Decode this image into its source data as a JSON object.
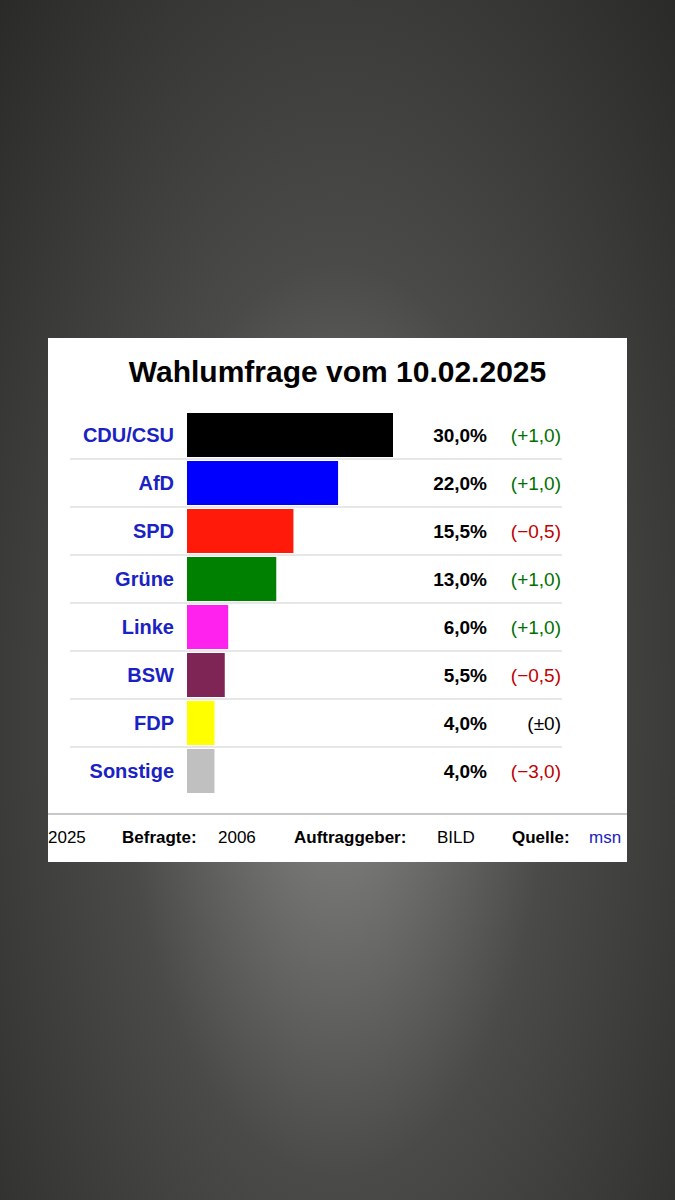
{
  "chart_data": {
    "type": "bar",
    "orientation": "horizontal",
    "title": "Wahlumfrage vom 10.02.2025",
    "categories": [
      "CDU/CSU",
      "AfD",
      "SPD",
      "Grüne",
      "Linke",
      "BSW",
      "FDP",
      "Sonstige"
    ],
    "values": [
      30,
      22,
      15.5,
      13,
      6,
      5.5,
      4,
      4
    ],
    "value_labels": [
      "30,0%",
      "22,0%",
      "15,5%",
      "13,0%",
      "6,0%",
      "5,5%",
      "4,0%",
      "4,0%"
    ],
    "changes": [
      1,
      1,
      -0.5,
      1,
      1,
      -0.5,
      0,
      -3
    ],
    "change_labels": [
      "(+1,0)",
      "(+1,0)",
      "(−0,5)",
      "(+1,0)",
      "(+1,0)",
      "(−0,5)",
      "(±0)",
      "(−3,0)"
    ],
    "colors": [
      "#000000",
      "#0000ff",
      "#ff1a0a",
      "#008000",
      "#ff22ee",
      "#7e2555",
      "#ffff00",
      "#c0c0c0"
    ],
    "xlim": [
      0,
      30
    ],
    "data_labels": true,
    "tick_labels": false,
    "grid": false,
    "footer": {
      "date": "2025",
      "items": [
        {
          "label": "Befragte:",
          "value": "2006"
        },
        {
          "label": "Auftraggeber:",
          "value": "BILD"
        },
        {
          "label": "Quelle:",
          "value": "msn"
        }
      ]
    }
  }
}
